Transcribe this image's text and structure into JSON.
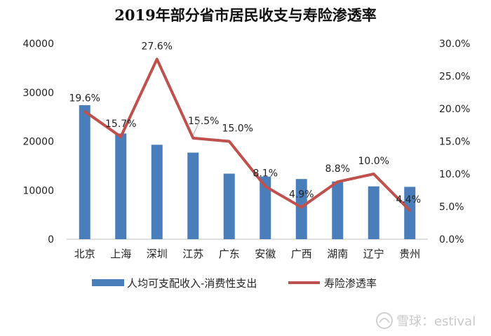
{
  "chart_data": {
    "type": "bar",
    "title": "2019年部分省市居民收支与寿险渗透率",
    "categories": [
      "北京",
      "上海",
      "深圳",
      "江苏",
      "广东",
      "安徽",
      "广西",
      "湖南",
      "辽宁",
      "贵州"
    ],
    "series": [
      {
        "name": "人均可支配收入-消费性支出",
        "type": "bar",
        "axis": "left",
        "color": "#4a7ebb",
        "values": [
          27400,
          21600,
          19300,
          17700,
          13400,
          12800,
          12300,
          11800,
          10800,
          10700
        ]
      },
      {
        "name": "寿险渗透率",
        "type": "line",
        "axis": "right",
        "color": "#c0504d",
        "values": [
          19.6,
          15.7,
          27.6,
          15.5,
          15.0,
          8.1,
          4.9,
          8.8,
          10.0,
          4.4
        ],
        "labels": [
          "19.6%",
          "15.7%",
          "27.6%",
          "15.5%",
          "15.0%",
          "8.1%",
          "4.9%",
          "8.8%",
          "10.0%",
          "4.4%"
        ]
      }
    ],
    "left_axis": {
      "ylim": [
        0,
        40000
      ],
      "ticks": [
        "0",
        "10000",
        "20000",
        "30000",
        "40000"
      ]
    },
    "right_axis": {
      "ylim": [
        0,
        30
      ],
      "ticks": [
        "0.0%",
        "5.0%",
        "10.0%",
        "15.0%",
        "20.0%",
        "25.0%",
        "30.0%"
      ]
    },
    "grid": false,
    "legend_position": "bottom"
  },
  "watermark": {
    "icon": "snowball-logo-icon",
    "text": "雪球：estival"
  }
}
